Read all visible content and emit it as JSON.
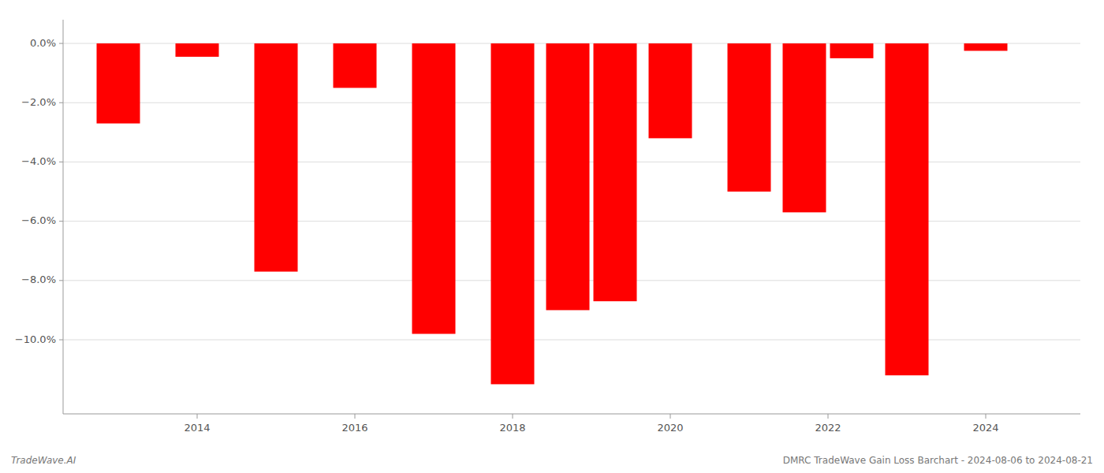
{
  "chart_data": {
    "type": "bar",
    "x": [
      2013,
      2014,
      2015,
      2016,
      2017,
      2018,
      2018.7,
      2019.3,
      2020,
      2021,
      2021.7,
      2022.3,
      2023,
      2024
    ],
    "values": [
      -2.7,
      -0.45,
      -7.7,
      -1.5,
      -9.8,
      -11.5,
      -9.0,
      -8.7,
      -3.2,
      -5.0,
      -5.7,
      -0.5,
      -11.2,
      -0.25
    ],
    "color": "#ff0000",
    "xlim": [
      2012.3,
      2025.2
    ],
    "xticks": [
      2014,
      2016,
      2018,
      2020,
      2022,
      2024
    ],
    "ylim": [
      -12.5,
      0.8
    ],
    "yticks": [
      {
        "value": 0.0,
        "label": "0.0%"
      },
      {
        "value": -2.0,
        "label": "−2.0%"
      },
      {
        "value": -4.0,
        "label": "−4.0%"
      },
      {
        "value": -6.0,
        "label": "−6.0%"
      },
      {
        "value": -8.0,
        "label": "−8.0%"
      },
      {
        "value": -10.0,
        "label": "−10.0%"
      }
    ],
    "grid": true,
    "annotations": [
      "TradeWave.AI",
      "DMRC TradeWave Gain Loss Barchart - 2024-08-06 to 2024-08-21"
    ]
  }
}
